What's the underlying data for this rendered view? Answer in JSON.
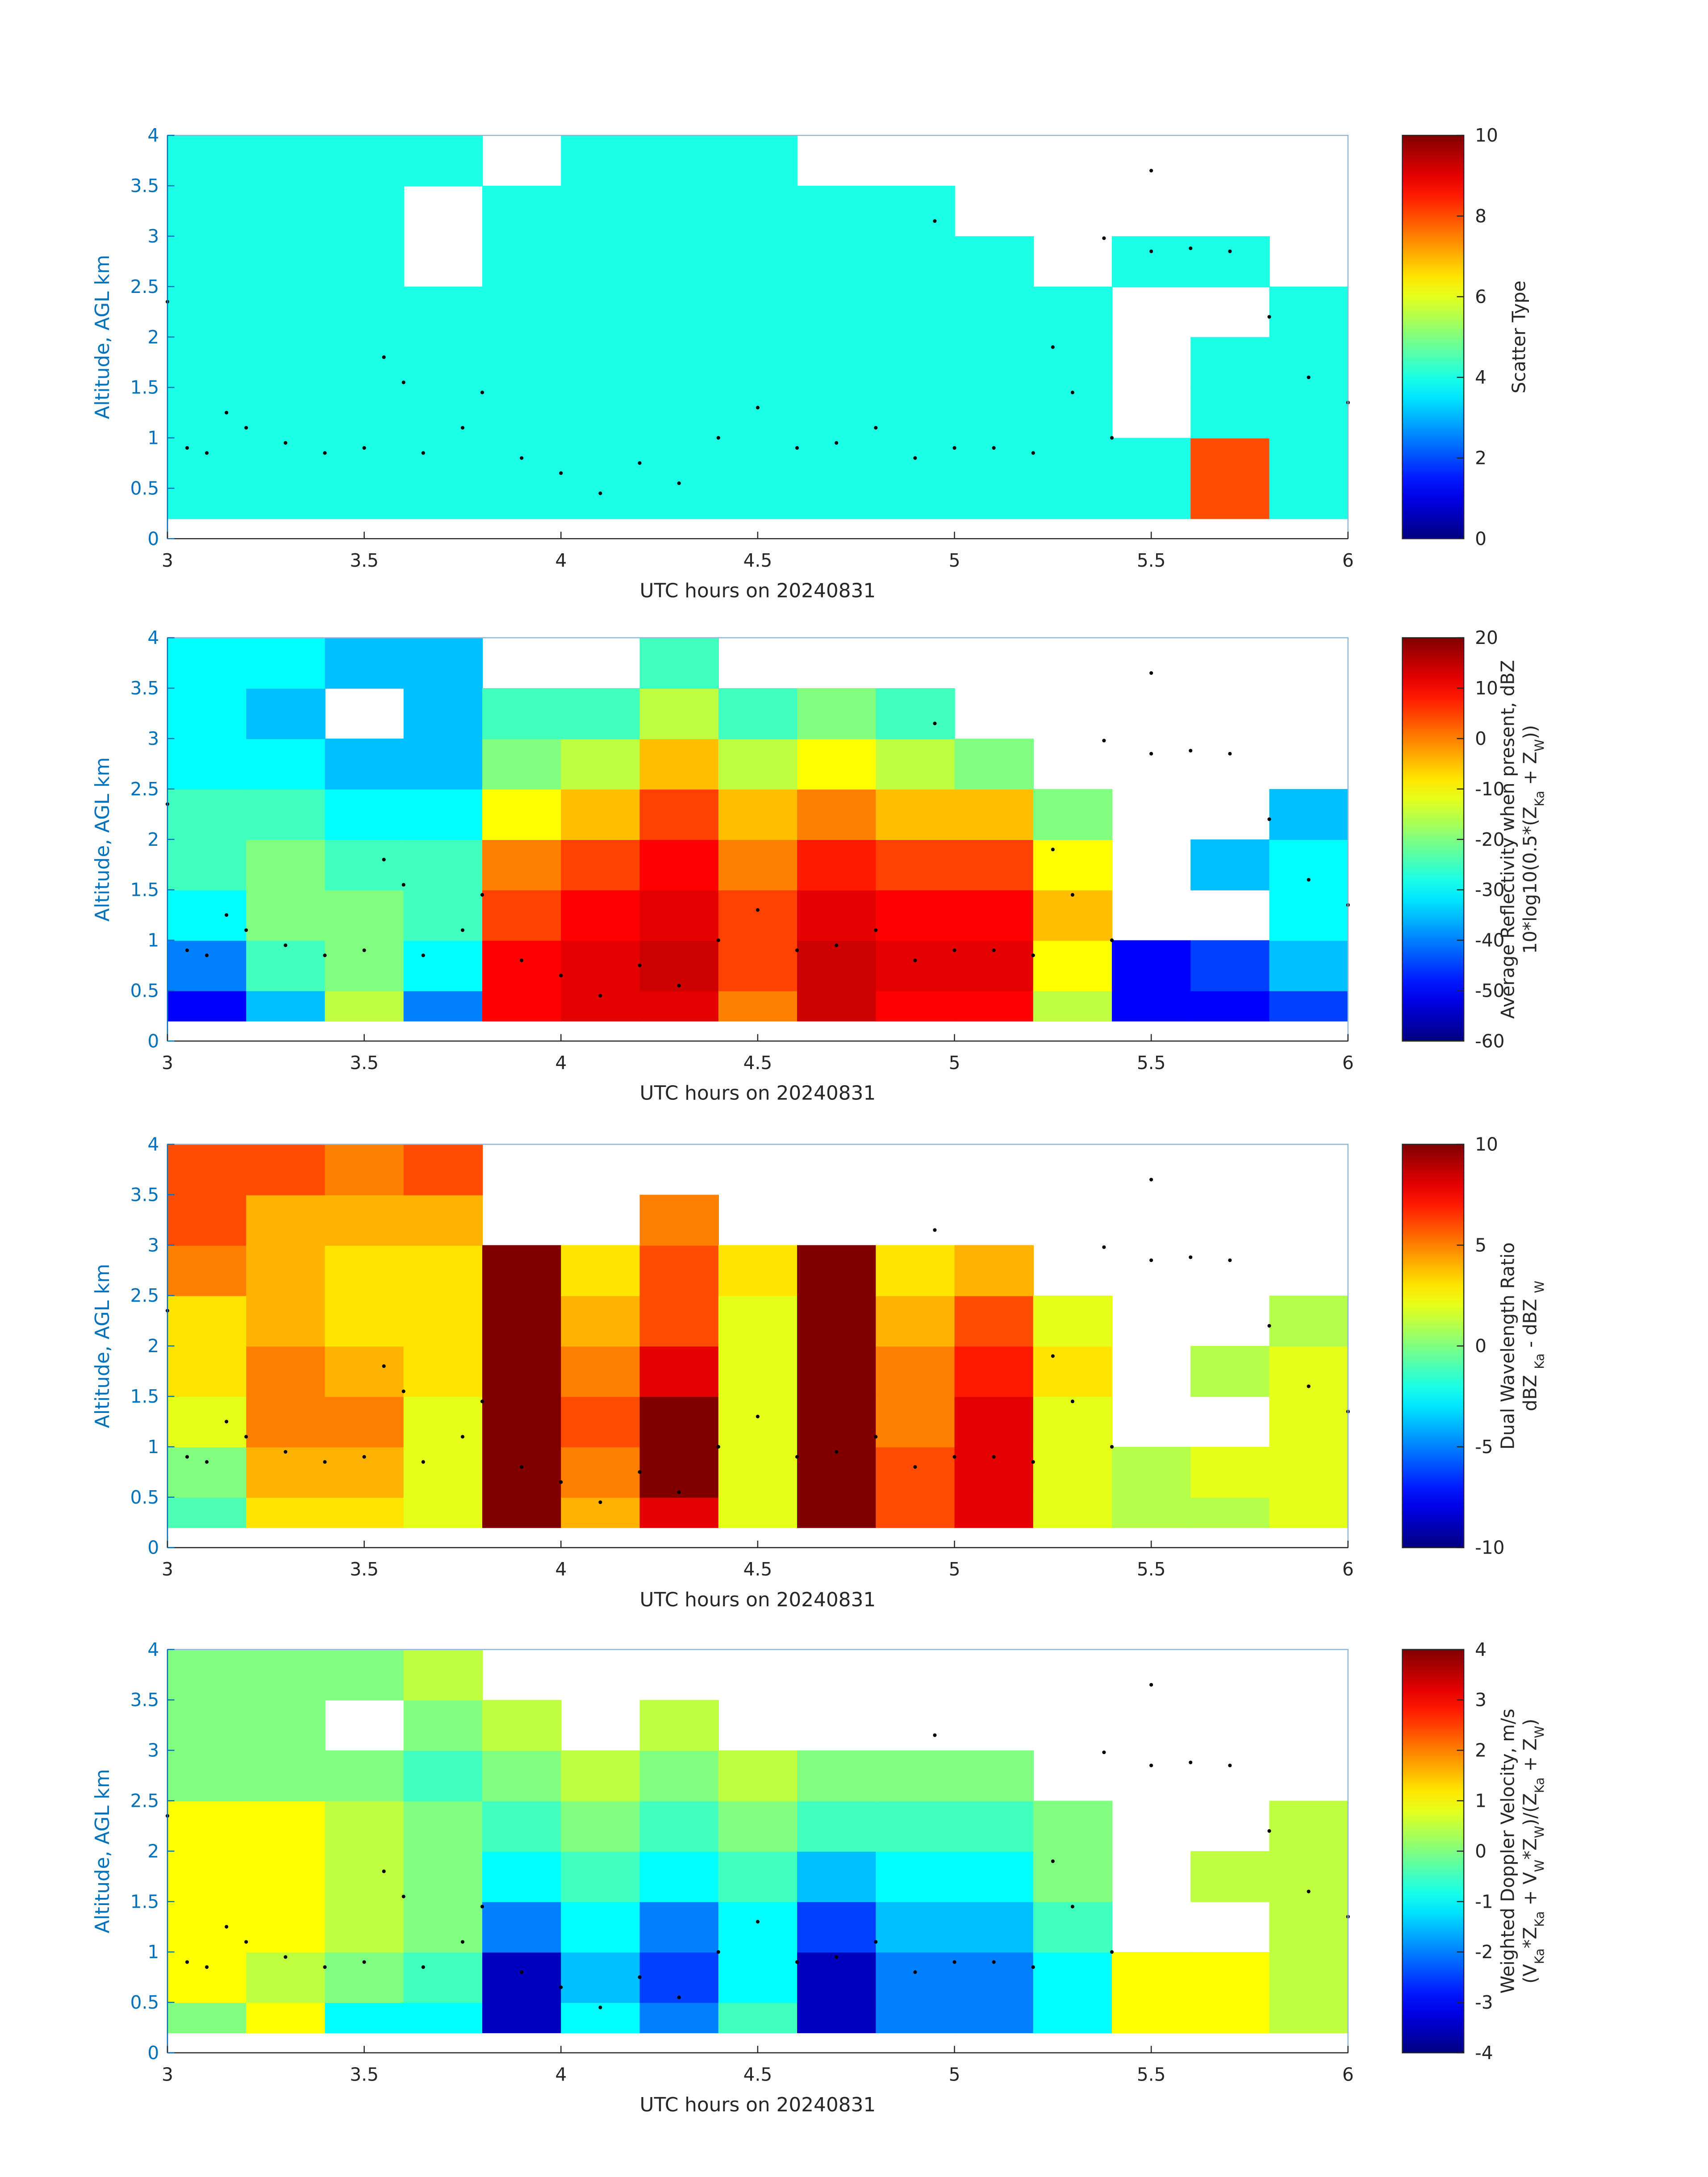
{
  "cloud_base": {
    "x": [
      3.0,
      3.05,
      3.1,
      3.15,
      3.2,
      3.3,
      3.4,
      3.5,
      3.55,
      3.6,
      3.65,
      3.75,
      3.8,
      3.9,
      4.0,
      4.1,
      4.2,
      4.3,
      4.4,
      4.5,
      4.6,
      4.7,
      4.8,
      4.9,
      4.95,
      5.0,
      5.1,
      5.2,
      5.25,
      5.3,
      5.38,
      5.4,
      5.5,
      5.5,
      5.6,
      5.7,
      5.8,
      5.9,
      6.0
    ],
    "y": [
      2.35,
      0.9,
      0.85,
      1.25,
      1.1,
      0.95,
      0.85,
      0.9,
      1.8,
      1.55,
      0.85,
      1.1,
      1.45,
      0.8,
      0.65,
      0.45,
      0.75,
      0.55,
      1.0,
      1.3,
      0.9,
      0.95,
      1.1,
      0.8,
      3.15,
      0.9,
      0.9,
      0.85,
      1.9,
      1.45,
      2.98,
      1.0,
      3.65,
      2.85,
      2.88,
      2.85,
      2.2,
      1.6,
      1.35
    ]
  },
  "chart_data": [
    {
      "type": "heatmap",
      "colormap": "jet",
      "xlabel": "UTC hours on 20240831",
      "ylabel": "Altitude, AGL km",
      "xlim": [
        3,
        6
      ],
      "xticks": [
        3,
        3.5,
        4,
        4.5,
        5,
        5.5,
        6
      ],
      "ylim": [
        0,
        4
      ],
      "yticks": [
        0,
        0.5,
        1,
        1.5,
        2,
        2.5,
        3,
        3.5,
        4
      ],
      "clim": [
        0,
        10
      ],
      "cticks": [
        0,
        2,
        4,
        6,
        8,
        10
      ],
      "cbar_label": [
        [
          "Scatter Type"
        ]
      ],
      "x_edges": [
        3.0,
        3.2,
        3.4,
        3.6,
        3.8,
        4.0,
        4.2,
        4.4,
        4.6,
        4.8,
        5.0,
        5.2,
        5.4,
        5.6,
        5.8,
        6.0
      ],
      "y_edges": [
        0.2,
        0.5,
        1,
        1.5,
        2,
        2.5,
        3,
        3.5,
        4
      ],
      "values": [
        [
          4,
          4,
          4,
          4,
          4,
          4,
          4,
          4
        ],
        [
          4,
          4,
          4,
          4,
          4,
          4,
          4,
          4
        ],
        [
          4,
          4,
          4,
          4,
          4,
          4,
          4,
          4
        ],
        [
          4,
          4,
          4,
          4,
          4,
          null,
          null,
          4
        ],
        [
          4,
          4,
          4,
          4,
          4,
          4,
          4,
          null
        ],
        [
          4,
          4,
          4,
          4,
          4,
          4,
          4,
          4
        ],
        [
          4,
          4,
          4,
          4,
          4,
          4,
          4,
          4
        ],
        [
          4,
          4,
          4,
          4,
          4,
          4,
          4,
          4
        ],
        [
          4,
          4,
          4,
          4,
          4,
          4,
          4,
          null
        ],
        [
          4,
          4,
          4,
          4,
          4,
          4,
          4,
          null
        ],
        [
          4,
          4,
          4,
          4,
          4,
          4,
          null,
          null
        ],
        [
          4,
          4,
          4,
          4,
          4,
          null,
          null,
          null
        ],
        [
          4,
          4,
          null,
          null,
          null,
          4,
          null,
          null
        ],
        [
          8,
          8,
          4,
          4,
          null,
          4,
          null,
          null
        ],
        [
          4,
          4,
          4,
          4,
          4,
          null,
          null,
          null
        ]
      ]
    },
    {
      "type": "heatmap",
      "colormap": "jet",
      "xlabel": "UTC hours on 20240831",
      "ylabel": "Altitude, AGL km",
      "xlim": [
        3,
        6
      ],
      "xticks": [
        3,
        3.5,
        4,
        4.5,
        5,
        5.5,
        6
      ],
      "ylim": [
        0,
        4
      ],
      "yticks": [
        0,
        0.5,
        1,
        1.5,
        2,
        2.5,
        3,
        3.5,
        4
      ],
      "clim": [
        -60,
        20
      ],
      "cticks": [
        -60,
        -50,
        -40,
        -30,
        -20,
        -10,
        0,
        10,
        20
      ],
      "cbar_label": [
        [
          "Average Reflectivity when present, dBZ"
        ],
        [
          "10*log10(0.5*(Z",
          {
            "sub": "Ka"
          },
          " + Z",
          {
            "sub": "W"
          },
          "))"
        ]
      ],
      "x_edges": [
        3.0,
        3.2,
        3.4,
        3.6,
        3.8,
        4.0,
        4.2,
        4.4,
        4.6,
        4.8,
        5.0,
        5.2,
        5.4,
        5.6,
        5.8,
        6.0
      ],
      "y_edges": [
        0.2,
        0.5,
        1,
        1.5,
        2,
        2.5,
        3,
        3.5,
        4
      ],
      "values": [
        [
          -50,
          -40,
          -30,
          -25,
          -25,
          -30,
          -30,
          -30
        ],
        [
          -35,
          -25,
          -20,
          -20,
          -25,
          -30,
          -35,
          -30
        ],
        [
          -15,
          -20,
          -20,
          -25,
          -30,
          -35,
          null,
          -35
        ],
        [
          -40,
          -30,
          -25,
          -25,
          -30,
          -35,
          -35,
          -35
        ],
        [
          10,
          10,
          5,
          0,
          -10,
          -20,
          -25,
          null
        ],
        [
          12,
          12,
          10,
          5,
          -5,
          -15,
          -25,
          null
        ],
        [
          12,
          14,
          12,
          10,
          5,
          -5,
          -15,
          -25
        ],
        [
          0,
          5,
          5,
          0,
          -5,
          -15,
          -25,
          null
        ],
        [
          14,
          14,
          12,
          8,
          0,
          -10,
          -20,
          null
        ],
        [
          10,
          12,
          10,
          5,
          -5,
          -15,
          -25,
          null
        ],
        [
          10,
          12,
          10,
          5,
          -5,
          -20,
          null,
          null
        ],
        [
          -15,
          -10,
          -5,
          -10,
          -20,
          null,
          null,
          null
        ],
        [
          -50,
          -50,
          null,
          null,
          null,
          null,
          null,
          null
        ],
        [
          -50,
          -45,
          null,
          -35,
          null,
          null,
          null,
          null
        ],
        [
          -45,
          -35,
          -30,
          -30,
          -35,
          null,
          null,
          null
        ]
      ]
    },
    {
      "type": "heatmap",
      "colormap": "jet",
      "xlabel": "UTC hours on 20240831",
      "ylabel": "Altitude, AGL km",
      "xlim": [
        3,
        6
      ],
      "xticks": [
        3,
        3.5,
        4,
        4.5,
        5,
        5.5,
        6
      ],
      "ylim": [
        0,
        4
      ],
      "yticks": [
        0,
        0.5,
        1,
        1.5,
        2,
        2.5,
        3,
        3.5,
        4
      ],
      "clim": [
        -10,
        10
      ],
      "cticks": [
        -10,
        -5,
        0,
        5,
        10
      ],
      "cbar_label": [
        [
          "Dual Wavelength Ratio"
        ],
        [
          "dBZ ",
          {
            "sub": "Ka"
          },
          " - dBZ ",
          {
            "sub": "W"
          }
        ]
      ],
      "x_edges": [
        3.0,
        3.2,
        3.4,
        3.6,
        3.8,
        4.0,
        4.2,
        4.4,
        4.6,
        4.8,
        5.0,
        5.2,
        5.4,
        5.6,
        5.8,
        6.0
      ],
      "y_edges": [
        0.2,
        0.5,
        1,
        1.5,
        2,
        2.5,
        3,
        3.5,
        4
      ],
      "values": [
        [
          -1,
          0,
          2,
          3,
          3,
          5,
          6,
          6
        ],
        [
          3,
          4,
          5,
          5,
          4,
          4,
          4,
          6
        ],
        [
          3,
          4,
          5,
          4,
          3,
          3,
          4,
          5
        ],
        [
          2,
          2,
          2,
          3,
          3,
          3,
          4,
          6
        ],
        [
          10,
          10,
          10,
          10,
          10,
          10,
          null,
          null
        ],
        [
          4,
          5,
          6,
          5,
          4,
          3,
          null,
          null
        ],
        [
          8,
          10,
          10,
          8,
          6,
          6,
          5,
          null
        ],
        [
          2,
          2,
          2,
          2,
          2,
          3,
          null,
          null
        ],
        [
          10,
          10,
          10,
          10,
          10,
          10,
          null,
          null
        ],
        [
          6,
          6,
          5,
          5,
          4,
          3,
          null,
          null
        ],
        [
          8,
          8,
          8,
          7,
          6,
          4,
          null,
          null
        ],
        [
          2,
          2,
          2,
          3,
          2,
          null,
          null,
          null
        ],
        [
          1,
          1,
          null,
          null,
          null,
          null,
          null,
          null
        ],
        [
          1,
          2,
          null,
          1,
          null,
          null,
          null,
          null
        ],
        [
          2,
          2,
          2,
          2,
          1,
          null,
          null,
          null
        ]
      ]
    },
    {
      "type": "heatmap",
      "colormap": "jet",
      "xlabel": "UTC hours on 20240831",
      "ylabel": "Altitude, AGL km",
      "xlim": [
        3,
        6
      ],
      "xticks": [
        3,
        3.5,
        4,
        4.5,
        5,
        5.5,
        6
      ],
      "ylim": [
        0,
        4
      ],
      "yticks": [
        0,
        0.5,
        1,
        1.5,
        2,
        2.5,
        3,
        3.5,
        4
      ],
      "clim": [
        -4,
        4
      ],
      "cticks": [
        -4,
        -3,
        -2,
        -1,
        0,
        1,
        2,
        3,
        4
      ],
      "cbar_label": [
        [
          "Weighted Doppler Velocity, m/s"
        ],
        [
          "(V",
          {
            "sub": "Ka"
          },
          "*Z",
          {
            "sub": "Ka"
          },
          " + V",
          {
            "sub": "W"
          },
          "*Z",
          {
            "sub": "W"
          },
          ")/(Z",
          {
            "sub": "Ka"
          },
          " + Z",
          {
            "sub": "W"
          },
          ")"
        ]
      ],
      "x_edges": [
        3.0,
        3.2,
        3.4,
        3.6,
        3.8,
        4.0,
        4.2,
        4.4,
        4.6,
        4.8,
        5.0,
        5.2,
        5.4,
        5.6,
        5.8,
        6.0
      ],
      "y_edges": [
        0.2,
        0.5,
        1,
        1.5,
        2,
        2.5,
        3,
        3.5,
        4
      ],
      "values": [
        [
          0,
          1,
          1,
          1,
          1,
          0,
          0,
          0
        ],
        [
          1,
          0.5,
          1,
          1,
          1,
          0,
          0,
          0
        ],
        [
          -1,
          0,
          0.5,
          0.5,
          0.5,
          0,
          null,
          0
        ],
        [
          -1,
          -0.5,
          0,
          0,
          0,
          -0.5,
          0,
          0.5
        ],
        [
          -3.5,
          -3.5,
          -2,
          -1,
          -0.5,
          0,
          0.5,
          null
        ],
        [
          -1,
          -1.5,
          -1,
          -0.5,
          0,
          0.5,
          null,
          null
        ],
        [
          -2,
          -2.5,
          -2,
          -1,
          -0.5,
          0,
          0.5,
          null
        ],
        [
          -0.5,
          -1,
          -1,
          -0.5,
          0,
          0.5,
          null,
          null
        ],
        [
          -3.5,
          -3.5,
          -2.5,
          -1.5,
          -0.5,
          0,
          null,
          null
        ],
        [
          -2,
          -2,
          -1.5,
          -1,
          -0.5,
          0,
          null,
          null
        ],
        [
          -2,
          -2,
          -1.5,
          -1,
          -0.5,
          0,
          null,
          null
        ],
        [
          -1,
          -1,
          -0.5,
          0,
          0,
          null,
          null,
          null
        ],
        [
          1,
          1,
          null,
          null,
          null,
          null,
          null,
          null
        ],
        [
          1,
          1,
          null,
          0.5,
          null,
          null,
          null,
          null
        ],
        [
          0.5,
          0.5,
          0.5,
          0.5,
          0.5,
          null,
          null,
          null
        ]
      ]
    }
  ]
}
